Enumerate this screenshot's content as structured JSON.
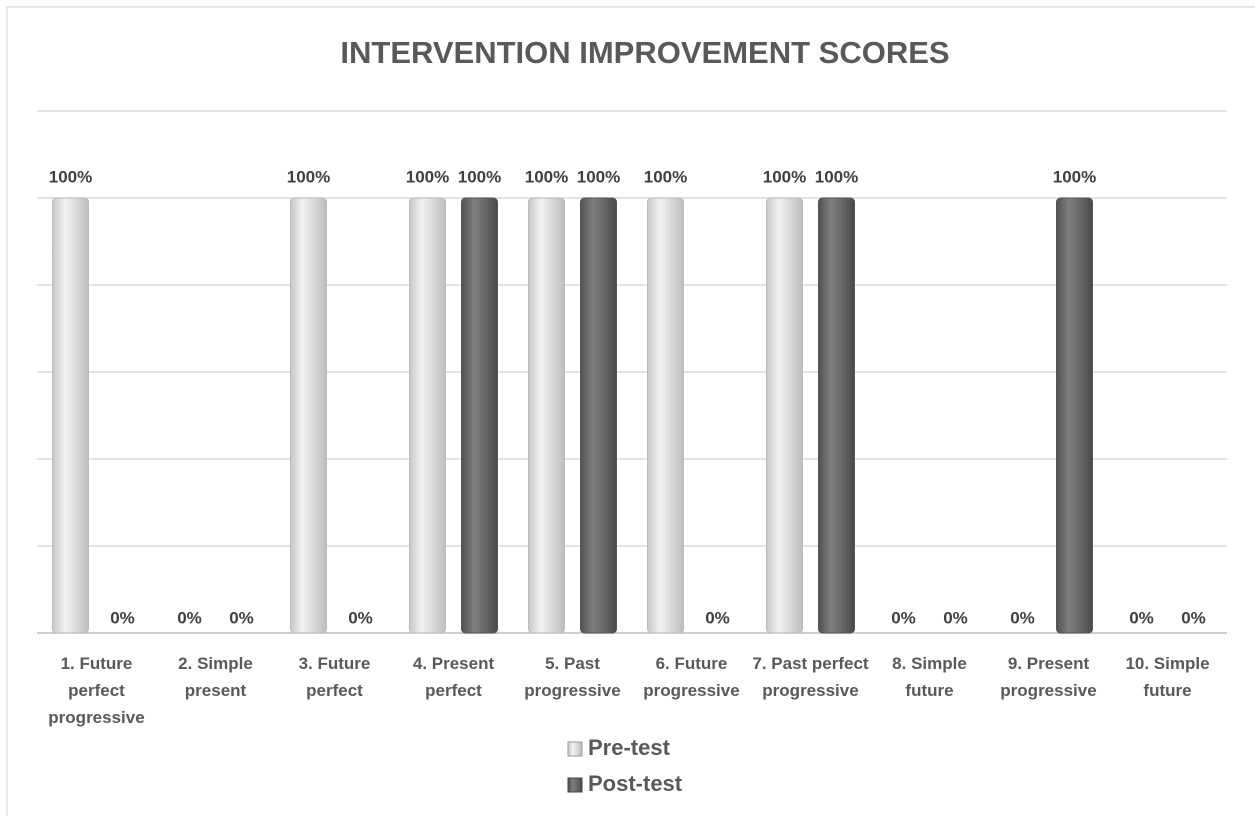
{
  "chart_data": {
    "type": "bar",
    "title": "INTERVENTION IMPROVEMENT SCORES",
    "categories": [
      "1. Future perfect progressive",
      "2. Simple present",
      "3. Future perfect",
      "4. Present perfect",
      "5. Past progressive",
      "6. Future progressive",
      "7. Past perfect progressive",
      "8. Simple future",
      "9. Present progressive",
      "10. Simple future"
    ],
    "series": [
      {
        "name": "Pre-test",
        "color": "#e3e3e3",
        "values": [
          100,
          0,
          100,
          100,
          100,
          100,
          100,
          0,
          0,
          0
        ],
        "value_labels": [
          "100%",
          "0%",
          "100%",
          "100%",
          "100%",
          "100%",
          "100%",
          "0%",
          "0%",
          "0%"
        ]
      },
      {
        "name": "Post-test",
        "color": "#707070",
        "values": [
          0,
          0,
          0,
          100,
          100,
          0,
          100,
          0,
          100,
          0
        ],
        "value_labels": [
          "0%",
          "0%",
          "0%",
          "100%",
          "100%",
          "0%",
          "100%",
          "0%",
          "100%",
          "0%"
        ]
      }
    ],
    "ylim": [
      0,
      120
    ],
    "yticks": [
      0,
      20,
      40,
      60,
      80,
      100,
      120
    ],
    "grid": true,
    "legend": "bottom"
  }
}
